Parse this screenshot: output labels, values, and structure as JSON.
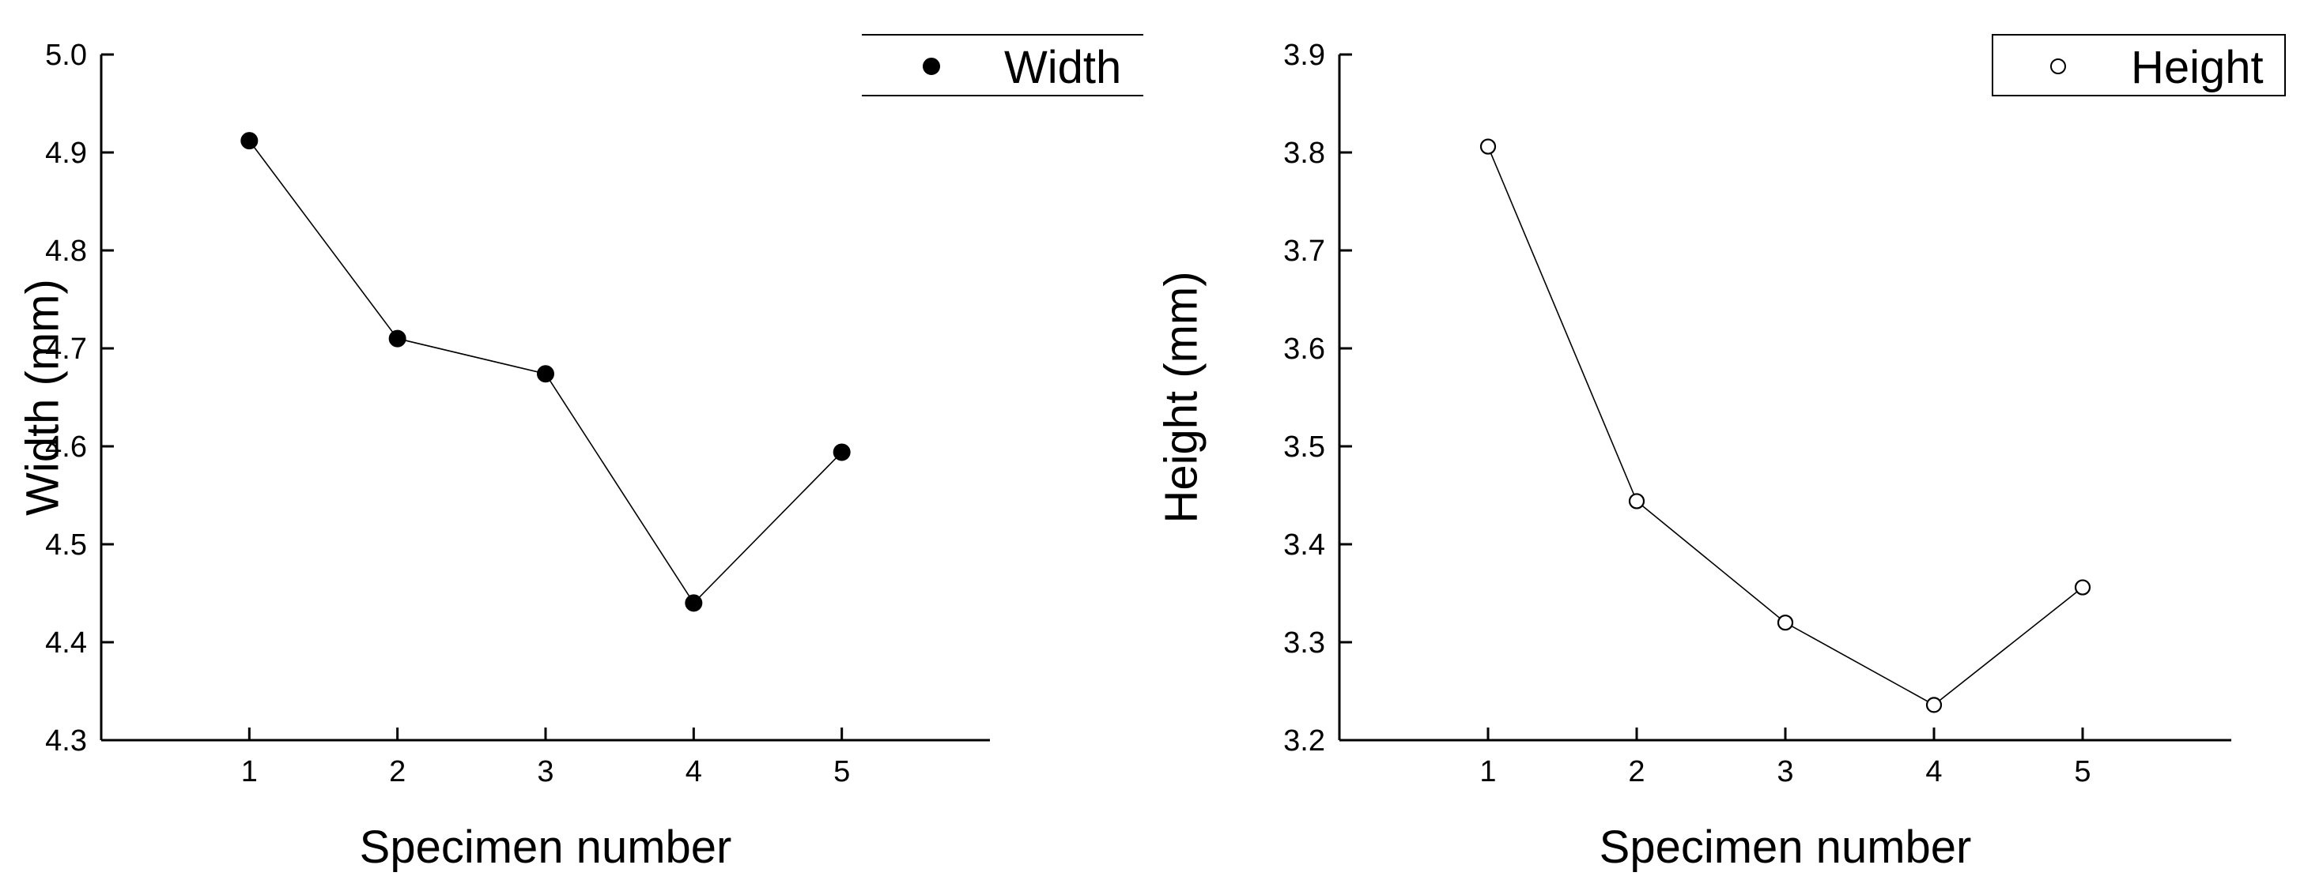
{
  "chart_data": [
    {
      "type": "line",
      "title": "",
      "xlabel": "Specimen number",
      "ylabel": "Width (mm)",
      "x": [
        1,
        2,
        3,
        4,
        5
      ],
      "xlim": [
        0,
        6
      ],
      "ylim": [
        4.3,
        5.0
      ],
      "xticks": [
        1,
        2,
        3,
        4,
        5
      ],
      "xtick_labels": [
        "1",
        "2",
        "3",
        "4",
        "5"
      ],
      "yticks": [
        4.3,
        4.4,
        4.5,
        4.6,
        4.7,
        4.8,
        4.9,
        5.0
      ],
      "ytick_labels": [
        "4.3",
        "4.4",
        "4.5",
        "4.6",
        "4.7",
        "4.8",
        "4.9",
        "5.0"
      ],
      "grid": false,
      "legend_position": "top-right",
      "series": [
        {
          "name": "Width",
          "values": [
            4.912,
            4.71,
            4.674,
            4.44,
            4.594
          ],
          "marker": "filled-circle",
          "color": "#000000"
        }
      ]
    },
    {
      "type": "line",
      "title": "",
      "xlabel": "Specimen number",
      "ylabel": "Height (mm)",
      "x": [
        1,
        2,
        3,
        4,
        5
      ],
      "xlim": [
        0,
        6
      ],
      "ylim": [
        3.2,
        3.9
      ],
      "xticks": [
        1,
        2,
        3,
        4,
        5
      ],
      "xtick_labels": [
        "1",
        "2",
        "3",
        "4",
        "5"
      ],
      "yticks": [
        3.2,
        3.3,
        3.4,
        3.5,
        3.6,
        3.7,
        3.8,
        3.9
      ],
      "ytick_labels": [
        "3.2",
        "3.3",
        "3.4",
        "3.5",
        "3.6",
        "3.7",
        "3.8",
        "3.9"
      ],
      "grid": false,
      "legend_position": "top-right",
      "series": [
        {
          "name": "Height",
          "values": [
            3.806,
            3.444,
            3.32,
            3.236,
            3.356
          ],
          "marker": "open-circle",
          "color": "#000000"
        }
      ]
    }
  ]
}
